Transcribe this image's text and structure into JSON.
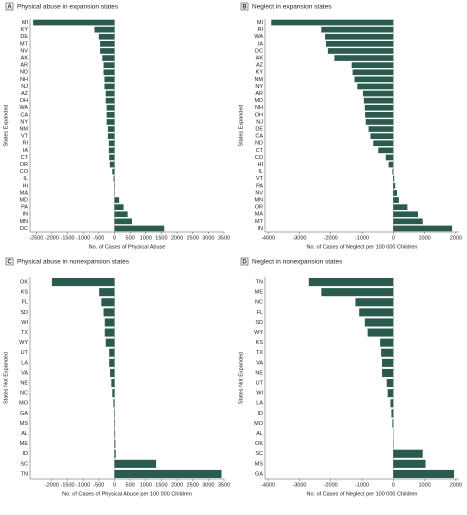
{
  "chart_data": [
    {
      "type": "bar",
      "orientation": "horizontal",
      "panel": "A",
      "title": "Physical abuse in expansion states",
      "x_label": "No. of Cases of Physical Abuse",
      "y_label": "States Expanded",
      "color": "#2b5a4f",
      "categories": [
        "MI",
        "KY",
        "DE",
        "MT",
        "NV",
        "AK",
        "AR",
        "ND",
        "NH",
        "NJ",
        "AZ",
        "OH",
        "WA",
        "CA",
        "NY",
        "NM",
        "VT",
        "RI",
        "IA",
        "CT",
        "OR",
        "CO",
        "IL",
        "HI",
        "MA",
        "MD",
        "PA",
        "IN",
        "MN",
        "DC"
      ],
      "values": [
        -2600,
        -640,
        -500,
        -460,
        -460,
        -390,
        -350,
        -350,
        -320,
        -320,
        -280,
        -280,
        -250,
        -250,
        -250,
        -210,
        -210,
        -180,
        -180,
        -170,
        -150,
        -70,
        -30,
        -15,
        10,
        150,
        290,
        420,
        560,
        1590
      ],
      "xlim": [
        -2700,
        3500
      ],
      "xticks": [
        -2500,
        -2000,
        -1500,
        -1000,
        -500,
        0,
        500,
        1000,
        1500,
        2000,
        2500,
        3000,
        3500
      ]
    },
    {
      "type": "bar",
      "orientation": "horizontal",
      "panel": "B",
      "title": "Neglect in expansion states",
      "x_label": "No. of Cases of Neglect per 100 000 Children",
      "y_label": "States Expanded",
      "color": "#2b5a4f",
      "categories": [
        "MI",
        "RI",
        "WA",
        "IA",
        "DC",
        "AK",
        "AZ",
        "KY",
        "NM",
        "NY",
        "AR",
        "MD",
        "NH",
        "OH",
        "NJ",
        "DE",
        "CA",
        "ND",
        "CT",
        "CO",
        "HI",
        "IL",
        "VT",
        "PA",
        "NV",
        "MN",
        "OR",
        "MA",
        "MT",
        "IN"
      ],
      "values": [
        -3900,
        -2300,
        -2180,
        -2150,
        -2090,
        -1880,
        -1330,
        -1300,
        -1240,
        -1150,
        -970,
        -940,
        -910,
        -900,
        -880,
        -790,
        -730,
        -640,
        -480,
        -240,
        -150,
        -30,
        30,
        60,
        120,
        180,
        450,
        790,
        940,
        1880
      ],
      "xlim": [
        -4100,
        2100
      ],
      "xticks": [
        -4000,
        -3000,
        -2000,
        -1000,
        0,
        1000,
        2000
      ]
    },
    {
      "type": "bar",
      "orientation": "horizontal",
      "panel": "C",
      "title": "Physical abuse in nonexpansion states",
      "x_label": "No. of Cases of Physical Abuse per 100 000 Children",
      "y_label": "States Not Expanded",
      "color": "#2b5a4f",
      "categories": [
        "OK",
        "KS",
        "FL",
        "SD",
        "WI",
        "TX",
        "WY",
        "UT",
        "LA",
        "VA",
        "NE",
        "NC",
        "MO",
        "GA",
        "MS",
        "AL",
        "ME",
        "ID",
        "SC",
        "TN"
      ],
      "values": [
        -2000,
        -490,
        -420,
        -350,
        -310,
        -310,
        -280,
        -170,
        -170,
        -140,
        -100,
        -70,
        -35,
        -15,
        15,
        20,
        30,
        40,
        1330,
        3420
      ],
      "xlim": [
        -2700,
        3500
      ],
      "xticks": [
        -2000,
        -1500,
        -1000,
        -500,
        0,
        500,
        1000,
        1500,
        2000,
        2500,
        3000,
        3500
      ]
    },
    {
      "type": "bar",
      "orientation": "horizontal",
      "panel": "D",
      "title": "Neglect in nonexpansion states",
      "x_label": "No. of Cases of Neglect per 100 000 Children",
      "y_label": "States Not Expanded",
      "color": "#2b5a4f",
      "categories": [
        "TN",
        "ME",
        "NC",
        "FL",
        "SD",
        "WY",
        "KS",
        "TX",
        "VA",
        "NE",
        "UT",
        "WI",
        "LA",
        "ID",
        "MO",
        "AL",
        "OK",
        "SC",
        "MS",
        "GA"
      ],
      "values": [
        -2700,
        -2300,
        -1210,
        -1090,
        -910,
        -820,
        -420,
        -390,
        -360,
        -360,
        -210,
        -180,
        -90,
        -60,
        -30,
        5,
        10,
        940,
        1030,
        1940
      ],
      "xlim": [
        -4100,
        2100
      ],
      "xticks": [
        -4000,
        -3000,
        -2000,
        -1000,
        0,
        1000,
        2000
      ]
    }
  ]
}
